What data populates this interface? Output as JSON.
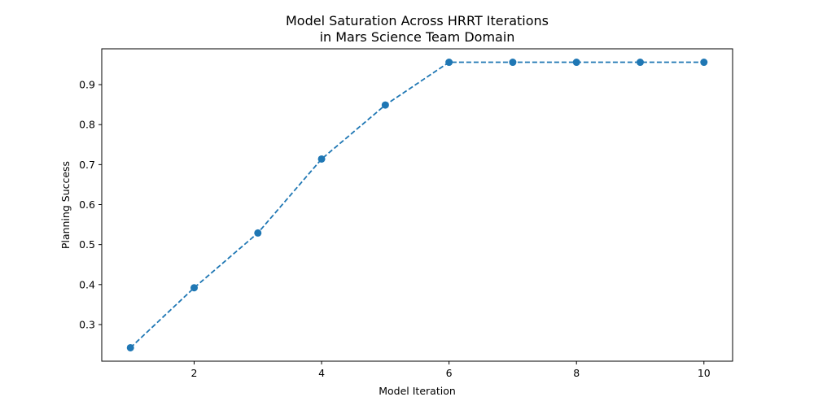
{
  "chart_data": {
    "type": "line",
    "title_lines": [
      "Model Saturation Across HRRT Iterations",
      "in Mars Science Team Domain"
    ],
    "xlabel": "Model Iteration",
    "ylabel": "Planning Success",
    "x": [
      1,
      2,
      3,
      4,
      5,
      6,
      7,
      8,
      9,
      10
    ],
    "series": [
      {
        "values": [
          0.242,
          0.392,
          0.529,
          0.714,
          0.849,
          0.956,
          0.956,
          0.956,
          0.956,
          0.956
        ],
        "color": "#1f77b4",
        "line_style": "dashed",
        "marker": "circle"
      }
    ],
    "xlim": [
      0.55,
      10.45
    ],
    "ylim": [
      0.2084,
      0.9896
    ],
    "x_ticks": [
      2,
      4,
      6,
      8,
      10
    ],
    "y_ticks": [
      0.3,
      0.4,
      0.5,
      0.6,
      0.7,
      0.8,
      0.9
    ],
    "grid": false,
    "legend": false
  }
}
